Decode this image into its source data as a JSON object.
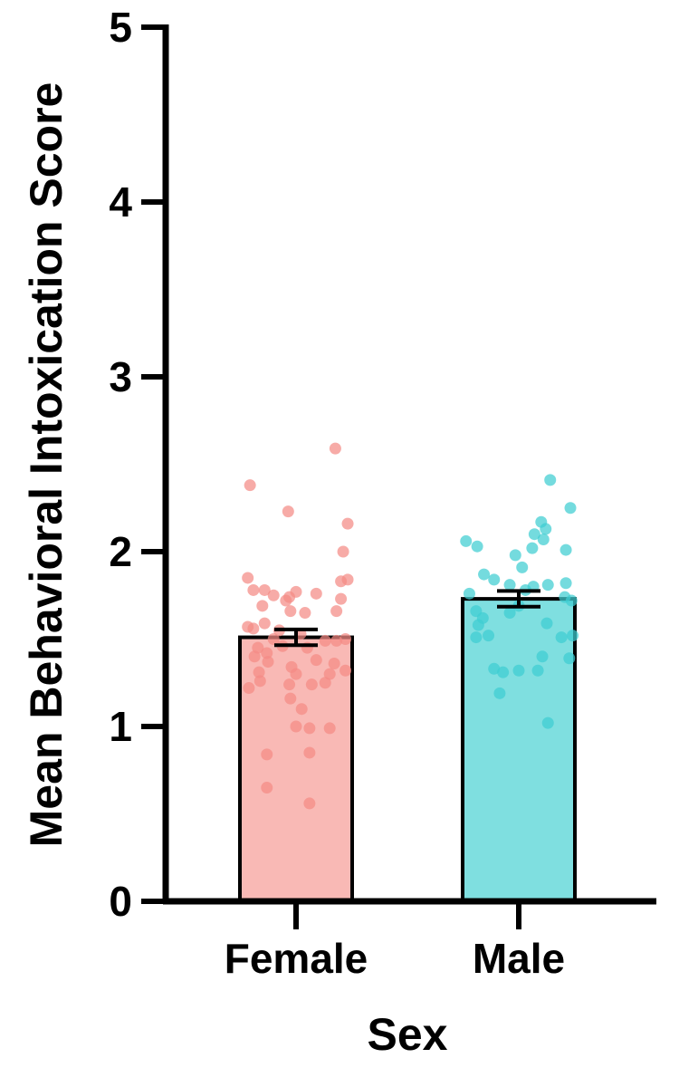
{
  "chart_data": {
    "type": "bar",
    "xlabel": "Sex",
    "ylabel": "Mean Behavioral Intoxication Score",
    "ylim": [
      0,
      5
    ],
    "yticks": [
      "0",
      "1",
      "2",
      "3",
      "4",
      "5"
    ],
    "categories": [
      "Female",
      "Male"
    ],
    "values": [
      1.51,
      1.73
    ],
    "error": [
      0.045,
      0.045
    ],
    "colors": {
      "bar_fill": [
        "#f9b9b5",
        "#7fdfe0"
      ],
      "point": [
        "#f48a85",
        "#3ecdd1"
      ],
      "outline": "#000000"
    },
    "points": [
      [
        {
          "j": -0.41,
          "y": 2.38
        },
        {
          "j": 0.35,
          "y": 2.59
        },
        {
          "j": -0.07,
          "y": 2.23
        },
        {
          "j": 0.46,
          "y": 2.16
        },
        {
          "j": 0.42,
          "y": 2.0
        },
        {
          "j": -0.43,
          "y": 1.85
        },
        {
          "j": 0.46,
          "y": 1.84
        },
        {
          "j": 0.4,
          "y": 1.83
        },
        {
          "j": -0.38,
          "y": 1.78
        },
        {
          "j": -0.28,
          "y": 1.78
        },
        {
          "j": -0.2,
          "y": 1.75
        },
        {
          "j": -0.09,
          "y": 1.72
        },
        {
          "j": -0.06,
          "y": 1.74
        },
        {
          "j": 0.0,
          "y": 1.77
        },
        {
          "j": 0.18,
          "y": 1.76
        },
        {
          "j": -0.3,
          "y": 1.69
        },
        {
          "j": -0.05,
          "y": 1.66
        },
        {
          "j": 0.08,
          "y": 1.65
        },
        {
          "j": 0.36,
          "y": 1.66
        },
        {
          "j": 0.4,
          "y": 1.73
        },
        {
          "j": -0.28,
          "y": 1.59
        },
        {
          "j": -0.43,
          "y": 1.57
        },
        {
          "j": -0.38,
          "y": 1.56
        },
        {
          "j": -0.15,
          "y": 1.55
        },
        {
          "j": 0.04,
          "y": 1.53
        },
        {
          "j": -0.2,
          "y": 1.5
        },
        {
          "j": 0.26,
          "y": 1.49
        },
        {
          "j": 0.36,
          "y": 1.49
        },
        {
          "j": 0.44,
          "y": 1.5
        },
        {
          "j": -0.34,
          "y": 1.45
        },
        {
          "j": -0.26,
          "y": 1.42
        },
        {
          "j": -0.12,
          "y": 1.46
        },
        {
          "j": 0.1,
          "y": 1.45
        },
        {
          "j": -0.37,
          "y": 1.4
        },
        {
          "j": -0.25,
          "y": 1.37
        },
        {
          "j": 0.18,
          "y": 1.38
        },
        {
          "j": -0.04,
          "y": 1.34
        },
        {
          "j": 0.0,
          "y": 1.3
        },
        {
          "j": 0.34,
          "y": 1.36
        },
        {
          "j": 0.44,
          "y": 1.32
        },
        {
          "j": -0.33,
          "y": 1.31
        },
        {
          "j": 0.3,
          "y": 1.3
        },
        {
          "j": -0.32,
          "y": 1.26
        },
        {
          "j": -0.06,
          "y": 1.24
        },
        {
          "j": 0.14,
          "y": 1.24
        },
        {
          "j": 0.26,
          "y": 1.25
        },
        {
          "j": -0.42,
          "y": 1.22
        },
        {
          "j": -0.05,
          "y": 1.16
        },
        {
          "j": 0.05,
          "y": 1.1
        },
        {
          "j": 0.0,
          "y": 1.0
        },
        {
          "j": 0.12,
          "y": 0.99
        },
        {
          "j": 0.3,
          "y": 0.99
        },
        {
          "j": -0.26,
          "y": 0.84
        },
        {
          "j": 0.12,
          "y": 0.85
        },
        {
          "j": -0.26,
          "y": 0.65
        },
        {
          "j": 0.12,
          "y": 0.56
        }
      ],
      [
        {
          "j": 0.28,
          "y": 2.41
        },
        {
          "j": 0.46,
          "y": 2.25
        },
        {
          "j": 0.2,
          "y": 2.17
        },
        {
          "j": 0.24,
          "y": 2.13
        },
        {
          "j": 0.14,
          "y": 2.1
        },
        {
          "j": 0.22,
          "y": 2.07
        },
        {
          "j": -0.47,
          "y": 2.06
        },
        {
          "j": -0.37,
          "y": 2.03
        },
        {
          "j": 0.12,
          "y": 2.02
        },
        {
          "j": 0.42,
          "y": 2.01
        },
        {
          "j": -0.03,
          "y": 1.98
        },
        {
          "j": 0.03,
          "y": 1.91
        },
        {
          "j": -0.31,
          "y": 1.87
        },
        {
          "j": -0.22,
          "y": 1.84
        },
        {
          "j": -0.08,
          "y": 1.81
        },
        {
          "j": 0.13,
          "y": 1.8
        },
        {
          "j": 0.26,
          "y": 1.81
        },
        {
          "j": 0.42,
          "y": 1.82
        },
        {
          "j": -0.44,
          "y": 1.76
        },
        {
          "j": 0.06,
          "y": 1.78
        },
        {
          "j": 0.41,
          "y": 1.74
        },
        {
          "j": 0.47,
          "y": 1.72
        },
        {
          "j": -0.38,
          "y": 1.66
        },
        {
          "j": -0.08,
          "y": 1.65
        },
        {
          "j": 0.0,
          "y": 1.69
        },
        {
          "j": -0.32,
          "y": 1.62
        },
        {
          "j": -0.36,
          "y": 1.58
        },
        {
          "j": 0.25,
          "y": 1.59
        },
        {
          "j": -0.38,
          "y": 1.51
        },
        {
          "j": -0.27,
          "y": 1.52
        },
        {
          "j": 0.38,
          "y": 1.51
        },
        {
          "j": 0.48,
          "y": 1.52
        },
        {
          "j": 0.21,
          "y": 1.4
        },
        {
          "j": 0.45,
          "y": 1.39
        },
        {
          "j": -0.22,
          "y": 1.33
        },
        {
          "j": -0.14,
          "y": 1.31
        },
        {
          "j": 0.0,
          "y": 1.32
        },
        {
          "j": 0.17,
          "y": 1.32
        },
        {
          "j": -0.17,
          "y": 1.19
        },
        {
          "j": 0.26,
          "y": 1.02
        }
      ]
    ]
  }
}
